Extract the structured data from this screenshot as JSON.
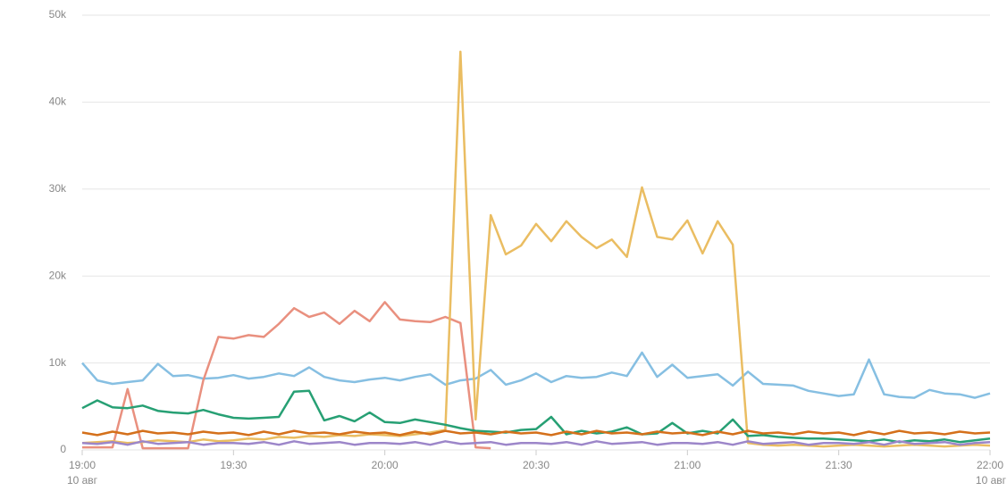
{
  "chart_data": {
    "type": "line",
    "x": [
      "19:00",
      "19:03",
      "19:06",
      "19:09",
      "19:12",
      "19:15",
      "19:18",
      "19:21",
      "19:24",
      "19:27",
      "19:30",
      "19:33",
      "19:36",
      "19:39",
      "19:42",
      "19:45",
      "19:48",
      "19:51",
      "19:54",
      "19:57",
      "20:00",
      "20:03",
      "20:06",
      "20:09",
      "20:12",
      "20:15",
      "20:18",
      "20:21",
      "20:24",
      "20:27",
      "20:30",
      "20:33",
      "20:36",
      "20:39",
      "20:42",
      "20:45",
      "20:48",
      "20:51",
      "20:54",
      "20:57",
      "21:00",
      "21:03",
      "21:06",
      "21:09",
      "21:12",
      "21:15",
      "21:18",
      "21:21",
      "21:24",
      "21:27",
      "21:30",
      "21:33",
      "21:36",
      "21:39",
      "21:42",
      "21:45",
      "21:48",
      "21:51",
      "21:54",
      "21:57",
      "22:00"
    ],
    "xticks": [
      "19:00",
      "19:30",
      "20:00",
      "20:30",
      "21:00",
      "21:30",
      "22:00"
    ],
    "date_labels": [
      {
        "value": "19:00",
        "label": "10 авг"
      },
      {
        "value": "22:00",
        "label": "10 авг"
      }
    ],
    "ylim": [
      0,
      50000
    ],
    "yticks": [
      0,
      {
        "value": 10000,
        "label": "10k"
      },
      {
        "value": 20000,
        "label": "20k"
      },
      {
        "value": 30000,
        "label": "30k"
      },
      {
        "value": 40000,
        "label": "40k"
      },
      {
        "value": 50000,
        "label": "50k"
      }
    ],
    "grid": true,
    "series": [
      {
        "color": "#86bfe2",
        "values": [
          10000,
          8000,
          7600,
          7800,
          8000,
          9900,
          8500,
          8600,
          8200,
          8300,
          8600,
          8200,
          8400,
          8800,
          8500,
          9500,
          8400,
          8000,
          7800,
          8100,
          8300,
          8000,
          8400,
          8700,
          7500,
          8000,
          8200,
          9200,
          7500,
          8000,
          8800,
          7800,
          8500,
          8300,
          8400,
          8900,
          8500,
          11200,
          8400,
          9800,
          8300,
          8500,
          8700,
          7400,
          9000,
          7600,
          7500,
          7400,
          6800,
          6500,
          6200,
          6400,
          10400,
          6400,
          6100,
          6000,
          6900,
          6500,
          6400,
          6000,
          6500
        ]
      },
      {
        "color": "#e9907f",
        "values": [
          300,
          300,
          300,
          7000,
          200,
          200,
          200,
          200,
          8000,
          13000,
          12800,
          13200,
          13000,
          14500,
          16300,
          15300,
          15800,
          14500,
          16000,
          14800,
          17000,
          15000,
          14800,
          14700,
          15300,
          14600,
          300,
          200,
          null,
          null,
          null,
          null,
          null,
          null,
          null,
          null,
          null,
          null,
          null,
          null,
          null,
          null,
          null,
          null,
          null,
          null,
          null,
          null,
          null,
          null,
          null,
          null,
          null,
          null,
          null,
          null,
          null,
          null,
          null,
          null,
          null
        ]
      },
      {
        "color": "#eabd62",
        "values": [
          800,
          900,
          1000,
          800,
          900,
          1100,
          1000,
          900,
          1200,
          1000,
          1100,
          1300,
          1200,
          1500,
          1400,
          1600,
          1500,
          1700,
          1600,
          1800,
          1700,
          1600,
          1800,
          2000,
          2300,
          45800,
          3500,
          27000,
          22500,
          23500,
          26000,
          24000,
          26300,
          24500,
          23200,
          24200,
          22200,
          30200,
          24500,
          24200,
          26400,
          22600,
          26300,
          23600,
          800,
          600,
          500,
          600,
          500,
          400,
          500,
          600,
          500,
          400,
          500,
          600,
          500,
          400,
          500,
          600,
          500
        ]
      },
      {
        "color": "#27a074",
        "values": [
          4800,
          5700,
          4900,
          4800,
          5100,
          4500,
          4300,
          4200,
          4600,
          4100,
          3700,
          3600,
          3700,
          3800,
          6700,
          6800,
          3400,
          3900,
          3300,
          4300,
          3200,
          3100,
          3500,
          3200,
          2900,
          2500,
          2200,
          2100,
          2000,
          2300,
          2400,
          3800,
          1800,
          2200,
          1900,
          2100,
          2600,
          1800,
          1900,
          3100,
          1900,
          2200,
          1900,
          3500,
          1600,
          1700,
          1500,
          1400,
          1300,
          1300,
          1200,
          1100,
          1000,
          1200,
          900,
          1100,
          1000,
          1200,
          900,
          1100,
          1300
        ]
      },
      {
        "color": "#d4701b",
        "values": [
          2000,
          1700,
          2100,
          1800,
          2200,
          1900,
          2000,
          1800,
          2100,
          1900,
          2000,
          1700,
          2100,
          1800,
          2200,
          1900,
          2000,
          1800,
          2100,
          1900,
          2000,
          1700,
          2100,
          1800,
          2200,
          1900,
          2000,
          1800,
          2100,
          1900,
          2000,
          1700,
          2100,
          1800,
          2200,
          1900,
          2000,
          1800,
          2100,
          1900,
          2000,
          1700,
          2100,
          1800,
          2200,
          1900,
          2000,
          1800,
          2100,
          1900,
          2000,
          1700,
          2100,
          1800,
          2200,
          1900,
          2000,
          1800,
          2100,
          1900,
          2000
        ]
      },
      {
        "color": "#9c86c9",
        "values": [
          800,
          700,
          900,
          600,
          1000,
          700,
          800,
          900,
          600,
          800,
          800,
          700,
          900,
          600,
          1000,
          700,
          800,
          900,
          600,
          800,
          800,
          700,
          900,
          600,
          1000,
          700,
          800,
          900,
          600,
          800,
          800,
          700,
          900,
          600,
          1000,
          700,
          800,
          900,
          600,
          800,
          800,
          700,
          900,
          600,
          1000,
          700,
          800,
          900,
          600,
          800,
          800,
          700,
          900,
          600,
          1000,
          700,
          800,
          900,
          600,
          800,
          900
        ]
      }
    ]
  }
}
